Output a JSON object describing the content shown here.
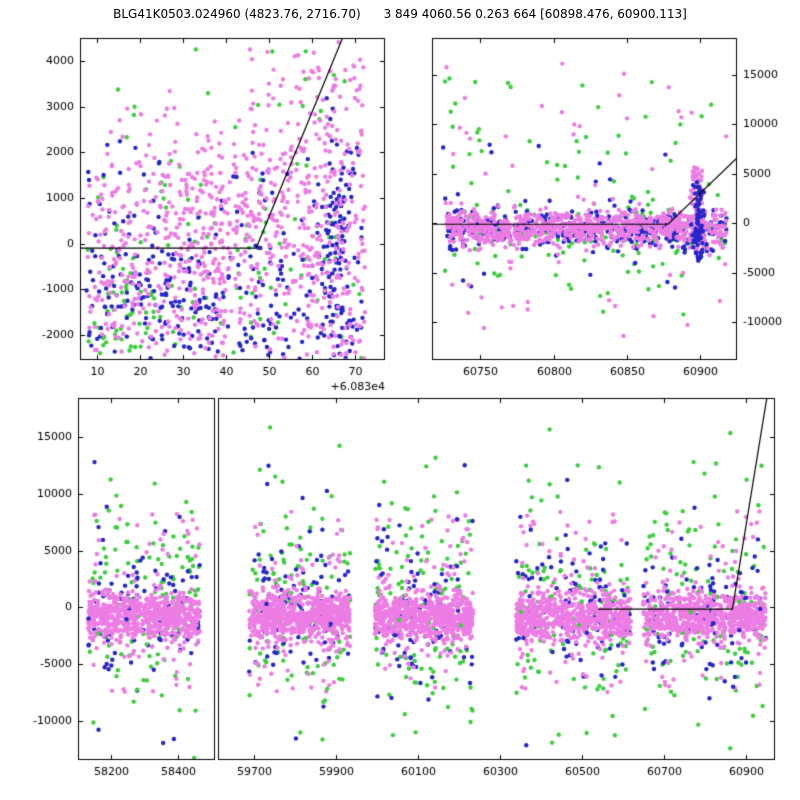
{
  "title": "BLG41K0503.024960 (4823.76, 2716.70)      3 849 4060.56 0.263 664 [60898.476, 60900.113]",
  "palette": {
    "violet": "#ed7de4",
    "green": "#3ecf3e",
    "blue": "#2626c9",
    "line": "#000000",
    "axis": "#000000",
    "text": "#000000",
    "background": "#ffffff"
  },
  "chart_data": [
    {
      "id": "zoom-detail",
      "type": "scatter",
      "seed": 101,
      "marker_radius": 2.2,
      "xlim": [
        6,
        77
      ],
      "ylim": [
        -2550,
        4500
      ],
      "xticks": [
        10,
        20,
        30,
        40,
        50,
        60,
        70
      ],
      "yticks": [
        -2000,
        -1000,
        0,
        1000,
        2000,
        3000,
        4000
      ],
      "x_offset_label": "+6.083e4",
      "y_tick_side": "left",
      "model_line": [
        [
          6,
          -100
        ],
        [
          47,
          -100
        ],
        [
          68,
          4700
        ]
      ],
      "clusters": [
        {
          "color": "green",
          "n": 95,
          "x": [
            "u",
            7.5,
            72
          ],
          "y": [
            "g",
            -300,
            1350
          ]
        },
        {
          "color": "green",
          "n": 40,
          "x": [
            "u",
            8,
            30
          ],
          "y": [
            "g",
            -1700,
            600
          ]
        },
        {
          "color": "green",
          "n": 14,
          "x": [
            "u",
            10,
            68
          ],
          "y": [
            "u",
            2400,
            4300
          ]
        },
        {
          "color": "blue",
          "n": 200,
          "x": [
            "u",
            7.5,
            62
          ],
          "y": [
            "g",
            -1300,
            850
          ]
        },
        {
          "color": "blue",
          "n": 150,
          "x": [
            "g",
            66,
            2.5
          ],
          "y": [
            "g",
            -300,
            1500
          ]
        },
        {
          "color": "blue",
          "n": 70,
          "x": [
            "u",
            7.5,
            72
          ],
          "y": [
            "u",
            -2450,
            2300
          ]
        },
        {
          "color": "violet",
          "n": 430,
          "x": [
            "u",
            7.5,
            72.5
          ],
          "y": [
            "g",
            200,
            1500
          ]
        },
        {
          "color": "violet",
          "n": 180,
          "x": [
            "g",
            40,
            11
          ],
          "y": [
            "g",
            700,
            900
          ]
        },
        {
          "color": "violet",
          "n": 130,
          "x": [
            "u",
            58,
            72
          ],
          "y": [
            "u",
            -2450,
            4000
          ]
        },
        {
          "color": "violet",
          "n": 120,
          "x": [
            "u",
            8,
            40
          ],
          "y": [
            "g",
            -1500,
            700
          ]
        },
        {
          "color": "violet",
          "n": 40,
          "x": [
            "u",
            45,
            72
          ],
          "y": [
            "u",
            2000,
            4450
          ]
        }
      ]
    },
    {
      "id": "recent-window",
      "type": "scatter",
      "seed": 202,
      "marker_radius": 2.2,
      "xlim": [
        60717,
        60925
      ],
      "ylim": [
        -13800,
        18700
      ],
      "xticks": [
        60750,
        60800,
        60850,
        60900
      ],
      "yticks": [
        -10000,
        -5000,
        0,
        5000,
        10000,
        15000
      ],
      "y_tick_side": "right",
      "model_line": [
        [
          60717,
          -100
        ],
        [
          60878,
          -100
        ],
        [
          60925,
          6600
        ]
      ],
      "clusters": [
        {
          "color": "green",
          "n": 90,
          "x": [
            "u",
            60727,
            60918
          ],
          "y": [
            "g",
            -700,
            1600
          ]
        },
        {
          "color": "green",
          "n": 75,
          "x": [
            "u",
            60724,
            60916
          ],
          "y": [
            "u",
            -9800,
            14800
          ]
        },
        {
          "color": "blue",
          "n": 380,
          "x": [
            "u",
            60727,
            60918
          ],
          "y": [
            "g",
            -600,
            950
          ]
        },
        {
          "color": "blue",
          "n": 28,
          "x": [
            "u",
            60724,
            60916
          ],
          "y": [
            "u",
            -6500,
            8000
          ]
        },
        {
          "color": "violet",
          "n": 820,
          "x": [
            "u",
            60727,
            60918
          ],
          "y": [
            "g",
            -400,
            850
          ]
        },
        {
          "color": "violet",
          "n": 65,
          "x": [
            "u",
            60724,
            60918
          ],
          "y": [
            "u",
            -11500,
            16500
          ]
        },
        {
          "color": "violet",
          "n": 90,
          "x": [
            "g",
            60898,
            2.2
          ],
          "y": [
            "u",
            -3000,
            5800
          ]
        },
        {
          "color": "blue",
          "n": 70,
          "x": [
            "g",
            60899,
            2.0
          ],
          "y": [
            "u",
            -3800,
            4300
          ]
        }
      ]
    },
    {
      "id": "full-lightcurve",
      "type": "scatter",
      "seed": 303,
      "marker_radius": 2.2,
      "segments": [
        {
          "xlim": [
            58100,
            58510
          ],
          "xticks": [
            58200,
            58400
          ],
          "width_ratio": 0.197
        },
        {
          "xlim": [
            59612,
            60972
          ],
          "xticks": [
            59700,
            59900,
            60100,
            60300,
            60500,
            60700,
            60900
          ],
          "width_ratio": 0.803
        }
      ],
      "ylim": [
        -13400,
        18400
      ],
      "yticks": [
        -10000,
        -5000,
        0,
        5000,
        10000,
        15000
      ],
      "y_tick_side": "left",
      "model_line": [
        [
          60540,
          -150
        ],
        [
          60868,
          -150
        ],
        [
          60952,
          18400
        ]
      ],
      "clusters": [
        {
          "color": "green",
          "n": 115,
          "x": [
            "u",
            58130,
            58465
          ],
          "y": [
            "g",
            300,
            4300
          ]
        },
        {
          "color": "blue",
          "n": 95,
          "x": [
            "u",
            58130,
            58465
          ],
          "y": [
            "g",
            -500,
            2900
          ]
        },
        {
          "color": "violet",
          "n": 70,
          "x": [
            "u",
            58130,
            58465
          ],
          "y": [
            "u",
            -7500,
            8500
          ]
        },
        {
          "color": "violet",
          "n": 650,
          "x": [
            "u",
            58130,
            58465
          ],
          "y": [
            "g",
            -800,
            1050
          ]
        },
        {
          "color": "green",
          "n": 16,
          "x": [
            "u",
            58130,
            58465
          ],
          "y": [
            "u",
            -12500,
            15800
          ]
        },
        {
          "color": "blue",
          "n": 8,
          "x": [
            "u",
            58130,
            58465
          ],
          "y": [
            "u",
            -12500,
            13500
          ]
        },
        {
          "color": "green",
          "n": 115,
          "x": [
            "u",
            59688,
            59935
          ],
          "y": [
            "g",
            300,
            4300
          ]
        },
        {
          "color": "blue",
          "n": 95,
          "x": [
            "u",
            59688,
            59935
          ],
          "y": [
            "g",
            -500,
            2900
          ]
        },
        {
          "color": "violet",
          "n": 70,
          "x": [
            "u",
            59688,
            59935
          ],
          "y": [
            "u",
            -7500,
            8500
          ]
        },
        {
          "color": "violet",
          "n": 650,
          "x": [
            "u",
            59688,
            59935
          ],
          "y": [
            "g",
            -800,
            1050
          ]
        },
        {
          "color": "green",
          "n": 16,
          "x": [
            "u",
            59688,
            59935
          ],
          "y": [
            "u",
            -12500,
            15800
          ]
        },
        {
          "color": "blue",
          "n": 8,
          "x": [
            "u",
            59688,
            59935
          ],
          "y": [
            "u",
            -12500,
            13500
          ]
        },
        {
          "color": "green",
          "n": 115,
          "x": [
            "u",
            59995,
            60235
          ],
          "y": [
            "g",
            300,
            4300
          ]
        },
        {
          "color": "blue",
          "n": 95,
          "x": [
            "u",
            59995,
            60235
          ],
          "y": [
            "g",
            -500,
            2900
          ]
        },
        {
          "color": "violet",
          "n": 70,
          "x": [
            "u",
            59995,
            60235
          ],
          "y": [
            "u",
            -7500,
            8500
          ]
        },
        {
          "color": "violet",
          "n": 650,
          "x": [
            "u",
            59995,
            60235
          ],
          "y": [
            "g",
            -800,
            1050
          ]
        },
        {
          "color": "green",
          "n": 16,
          "x": [
            "u",
            59995,
            60235
          ],
          "y": [
            "u",
            -12500,
            15800
          ]
        },
        {
          "color": "blue",
          "n": 8,
          "x": [
            "u",
            59995,
            60235
          ],
          "y": [
            "u",
            -12500,
            13500
          ]
        },
        {
          "color": "green",
          "n": 115,
          "x": [
            "u",
            60340,
            60620
          ],
          "y": [
            "g",
            300,
            4300
          ]
        },
        {
          "color": "blue",
          "n": 95,
          "x": [
            "u",
            60340,
            60620
          ],
          "y": [
            "g",
            -500,
            2900
          ]
        },
        {
          "color": "violet",
          "n": 70,
          "x": [
            "u",
            60340,
            60620
          ],
          "y": [
            "u",
            -7500,
            8500
          ]
        },
        {
          "color": "violet",
          "n": 650,
          "x": [
            "u",
            60340,
            60620
          ],
          "y": [
            "g",
            -800,
            1050
          ]
        },
        {
          "color": "green",
          "n": 16,
          "x": [
            "u",
            60340,
            60620
          ],
          "y": [
            "u",
            -12500,
            15800
          ]
        },
        {
          "color": "blue",
          "n": 8,
          "x": [
            "u",
            60340,
            60620
          ],
          "y": [
            "u",
            -12500,
            13500
          ]
        },
        {
          "color": "green",
          "n": 115,
          "x": [
            "u",
            60650,
            60950
          ],
          "y": [
            "g",
            300,
            4300
          ]
        },
        {
          "color": "blue",
          "n": 95,
          "x": [
            "u",
            60650,
            60950
          ],
          "y": [
            "g",
            -500,
            2900
          ]
        },
        {
          "color": "violet",
          "n": 70,
          "x": [
            "u",
            60650,
            60950
          ],
          "y": [
            "u",
            -7500,
            8500
          ]
        },
        {
          "color": "violet",
          "n": 650,
          "x": [
            "u",
            60650,
            60950
          ],
          "y": [
            "g",
            -800,
            1050
          ]
        },
        {
          "color": "green",
          "n": 16,
          "x": [
            "u",
            60650,
            60950
          ],
          "y": [
            "u",
            -12500,
            15800
          ]
        },
        {
          "color": "blue",
          "n": 8,
          "x": [
            "u",
            60650,
            60950
          ],
          "y": [
            "u",
            -12500,
            13500
          ]
        }
      ]
    }
  ]
}
